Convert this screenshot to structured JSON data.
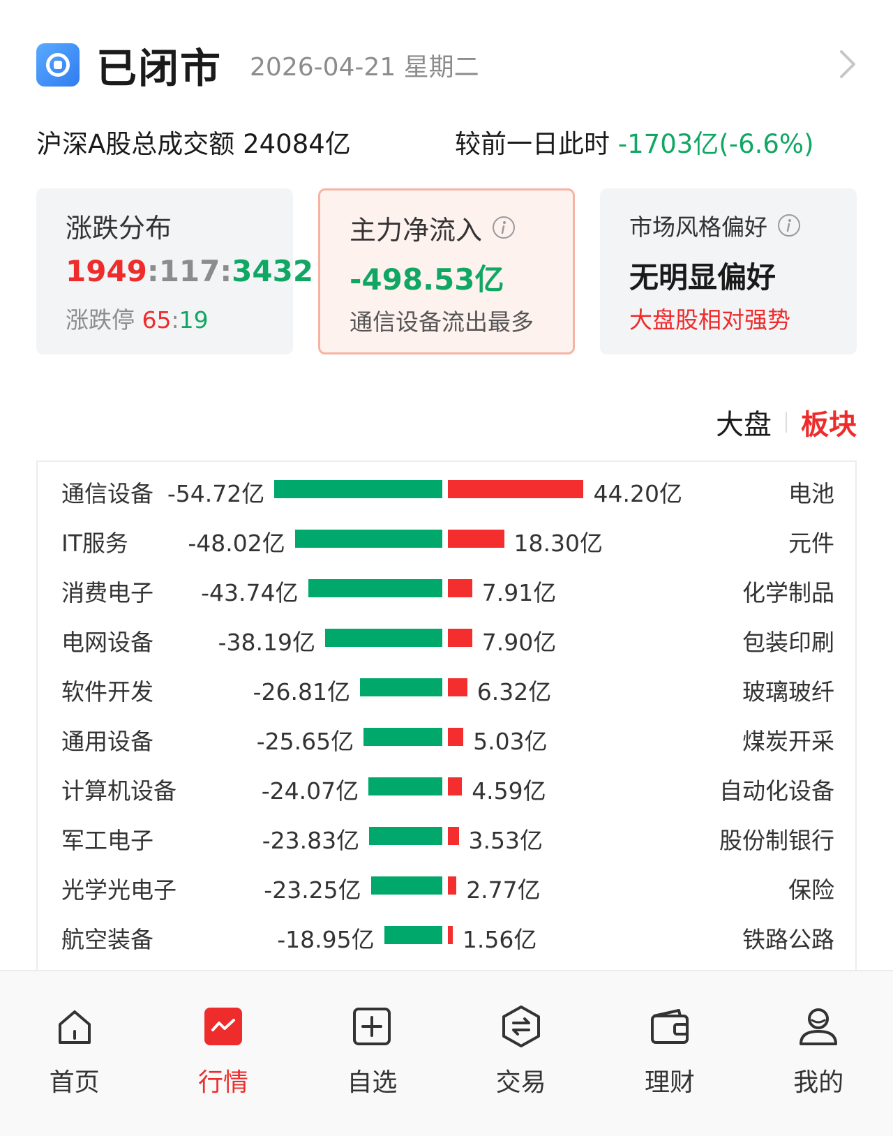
{
  "header": {
    "status": "已闭市",
    "date": "2026-04-21 星期二"
  },
  "summary": {
    "turnover_label": "沪深A股总成交额",
    "turnover_value": "24084亿",
    "compare_label": "较前一日此时",
    "compare_value": "-1703亿(-6.6%)"
  },
  "cards": {
    "breadth": {
      "title": "涨跌分布",
      "up": "1949",
      "sep1": ":",
      "flat": "117",
      "sep2": ":",
      "down": "3432",
      "limit_label": "涨跌停",
      "limit_up": "65",
      "limit_sep": ":",
      "limit_down": "19"
    },
    "flow": {
      "title": "主力净流入",
      "value": "-498.53亿",
      "note": "通信设备流出最多"
    },
    "style": {
      "title": "市场风格偏好",
      "value": "无明显偏好",
      "note": "大盘股相对强势"
    }
  },
  "toggle": {
    "market": "大盘",
    "sector": "板块",
    "active": "sector"
  },
  "chart_data": {
    "type": "bar",
    "units": "亿",
    "outflow": {
      "categories": [
        "通信设备",
        "IT服务",
        "消费电子",
        "电网设备",
        "软件开发",
        "通用设备",
        "计算机设备",
        "军工电子",
        "光学光电子",
        "航空装备"
      ],
      "values": [
        -54.72,
        -48.02,
        -43.74,
        -38.19,
        -26.81,
        -25.65,
        -24.07,
        -23.83,
        -23.25,
        -18.95
      ],
      "labels": [
        "-54.72亿",
        "-48.02亿",
        "-43.74亿",
        "-38.19亿",
        "-26.81亿",
        "-25.65亿",
        "-24.07亿",
        "-23.83亿",
        "-23.25亿",
        "-18.95亿"
      ],
      "color": "#00a96b"
    },
    "inflow": {
      "categories": [
        "电池",
        "元件",
        "化学制品",
        "包装印刷",
        "玻璃玻纤",
        "煤炭开采",
        "自动化设备",
        "股份制银行",
        "保险",
        "铁路公路"
      ],
      "values": [
        44.2,
        18.3,
        7.91,
        7.9,
        6.32,
        5.03,
        4.59,
        3.53,
        2.77,
        1.56
      ],
      "labels": [
        "44.20亿",
        "18.30亿",
        "7.91亿",
        "7.90亿",
        "6.32亿",
        "5.03亿",
        "4.59亿",
        "3.53亿",
        "2.77亿",
        "1.56亿"
      ],
      "color": "#f42e2e"
    }
  },
  "nav": {
    "items": [
      {
        "label": "首页",
        "icon": "home-icon"
      },
      {
        "label": "行情",
        "icon": "market-icon"
      },
      {
        "label": "自选",
        "icon": "watchlist-icon"
      },
      {
        "label": "交易",
        "icon": "trade-icon"
      },
      {
        "label": "理财",
        "icon": "wallet-icon"
      },
      {
        "label": "我的",
        "icon": "profile-icon"
      }
    ],
    "active_index": 1
  },
  "colors": {
    "up": "#ee2c2c",
    "down": "#0fa763",
    "accent": "#ee2c2c",
    "brand": "#2f7cf0"
  }
}
